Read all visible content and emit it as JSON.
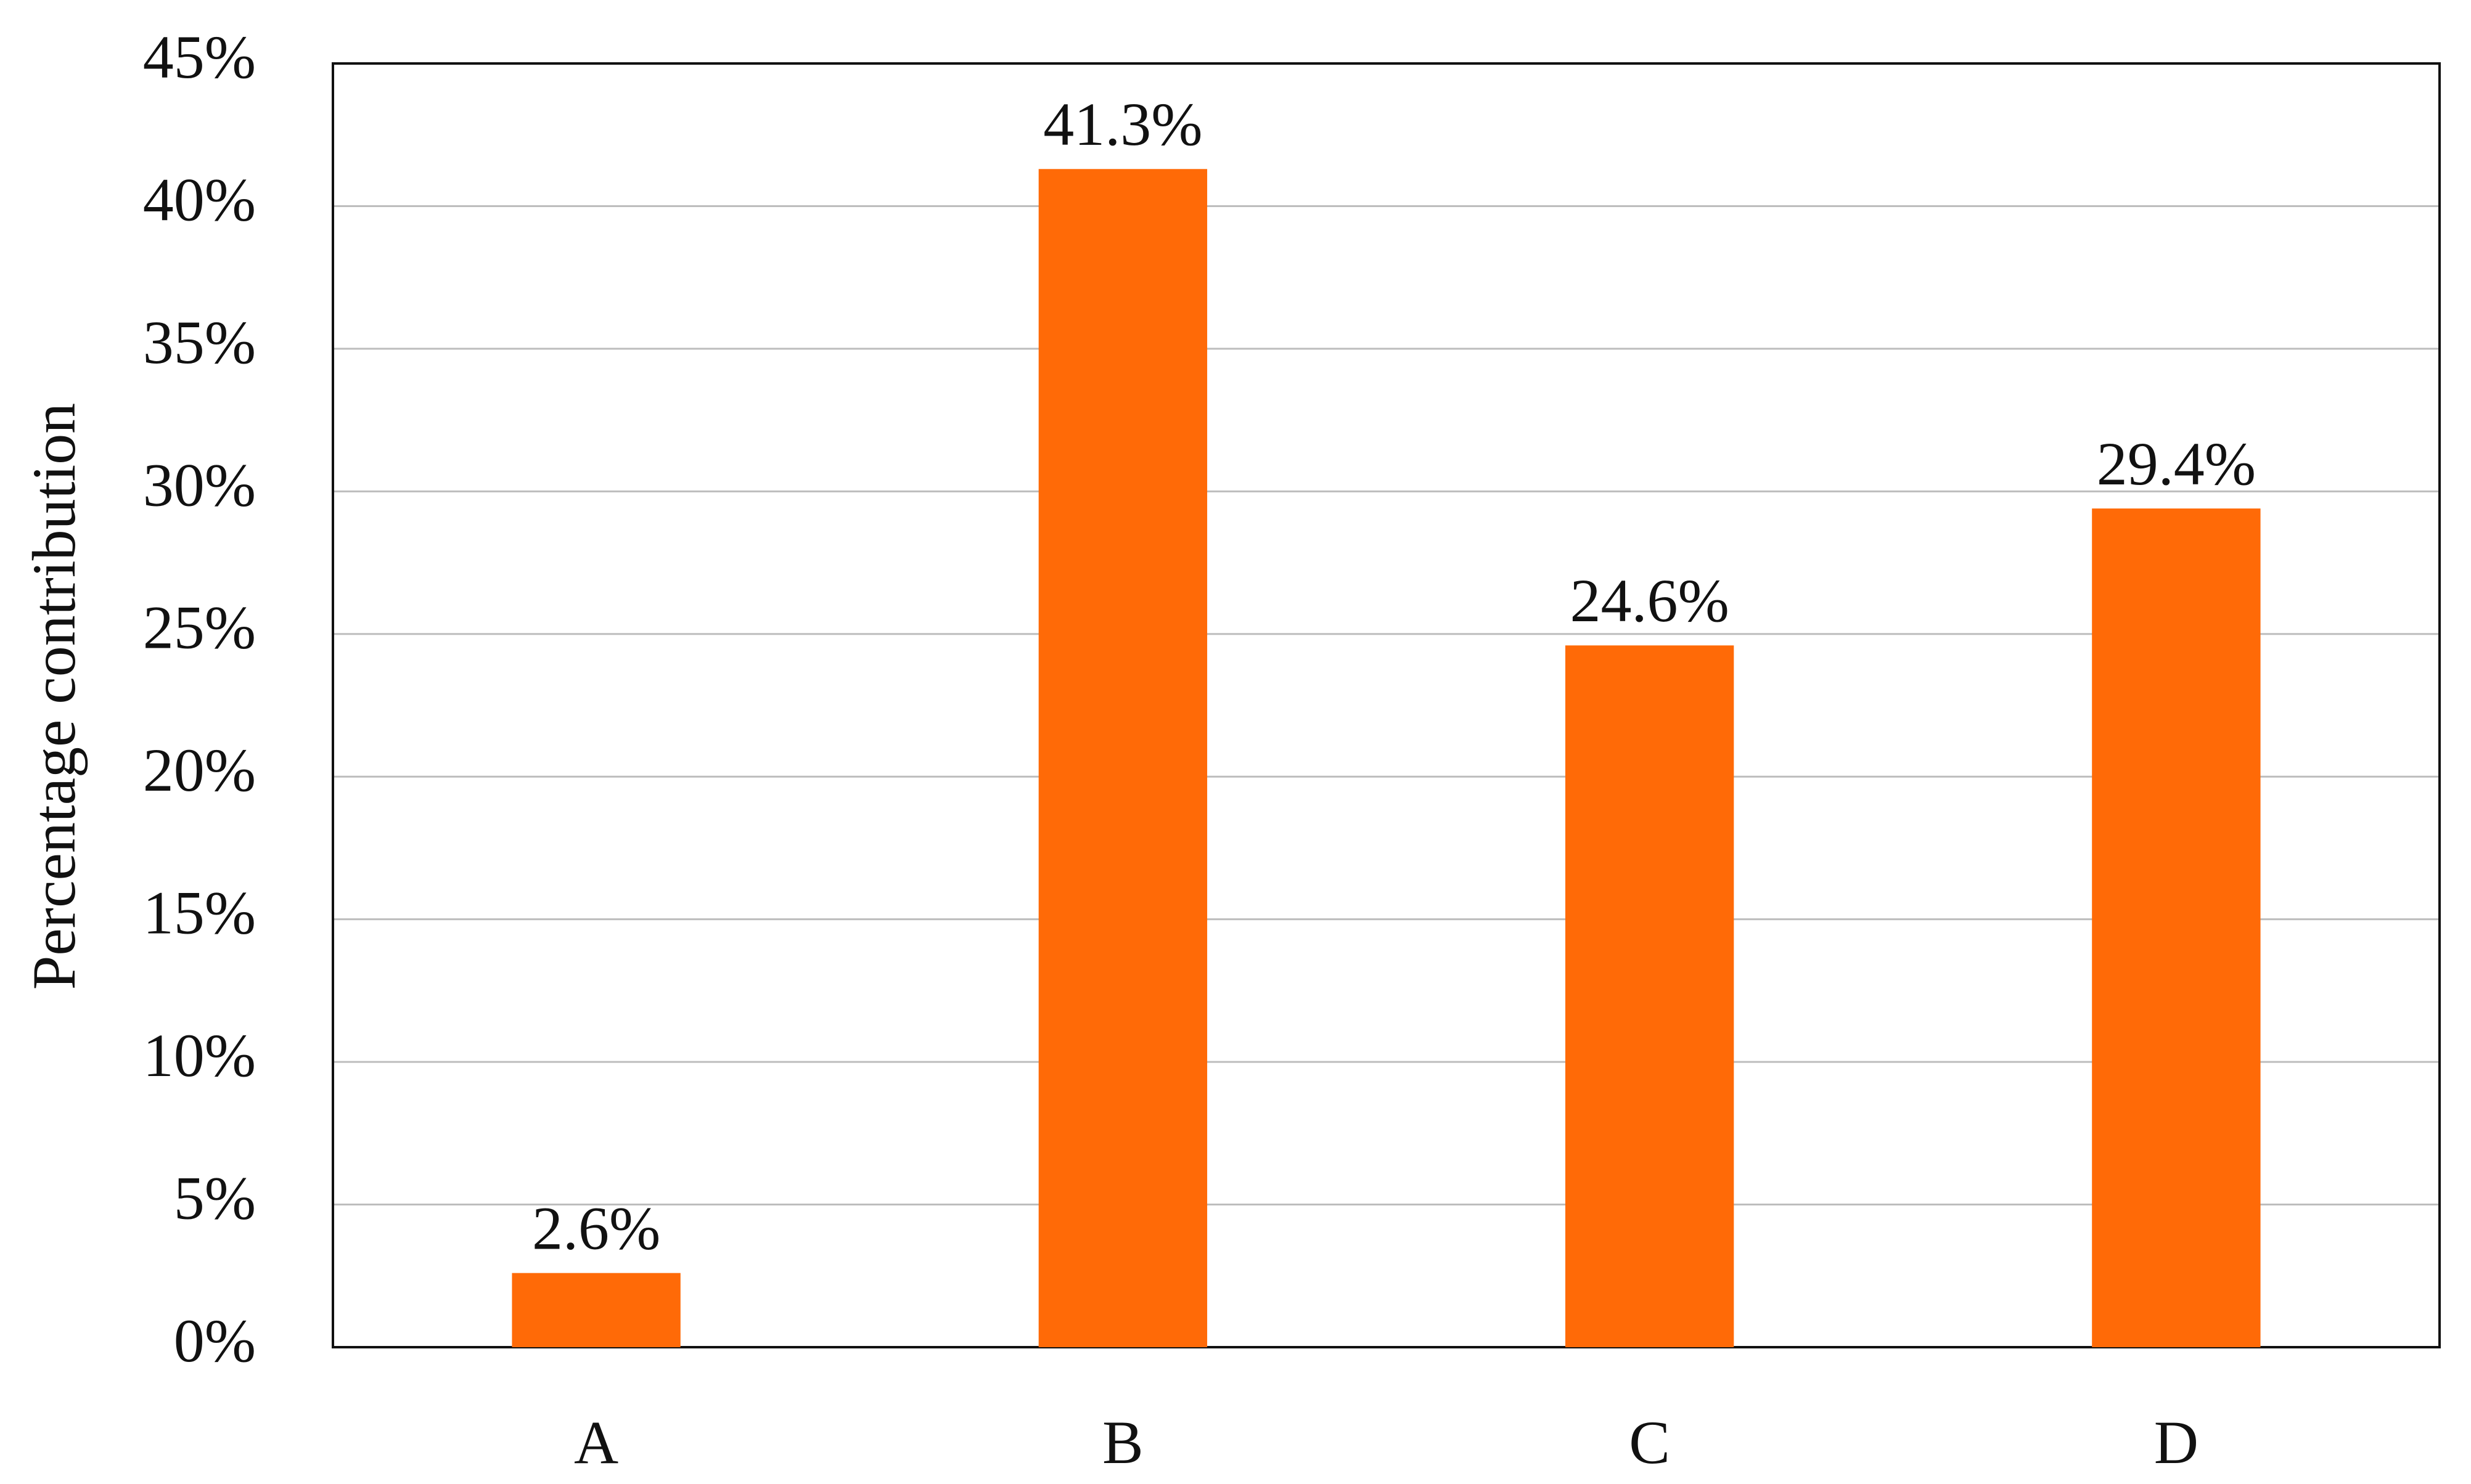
{
  "chart_data": {
    "type": "bar",
    "y_label": "Percentage contribution",
    "categories": [
      "A",
      "B",
      "C",
      "D"
    ],
    "values": [
      2.6,
      41.3,
      24.6,
      29.4
    ],
    "value_labels": [
      "2.6%",
      "41.3%",
      "24.6%",
      "29.4%"
    ],
    "color": "#ff6a07",
    "ylim": [
      0,
      45
    ],
    "yticks": [
      {
        "value": 0,
        "label": "0%"
      },
      {
        "value": 5,
        "label": "5%"
      },
      {
        "value": 10,
        "label": "10%"
      },
      {
        "value": 15,
        "label": "15%"
      },
      {
        "value": 20,
        "label": "20%"
      },
      {
        "value": 25,
        "label": "25%"
      },
      {
        "value": 30,
        "label": "30%"
      },
      {
        "value": 35,
        "label": "35%"
      },
      {
        "value": 40,
        "label": "40%"
      },
      {
        "value": 45,
        "label": "45%"
      }
    ],
    "grid": true
  }
}
